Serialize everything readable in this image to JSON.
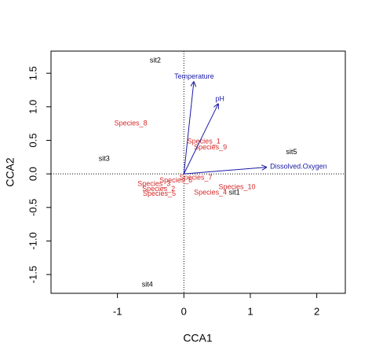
{
  "chart_data": {
    "type": "biplot",
    "x_label": "CCA1",
    "y_label": "CCA2",
    "xlim": [
      -2.0,
      2.43
    ],
    "ylim": [
      -1.78,
      1.83
    ],
    "xticks": [
      -1,
      0,
      1,
      2
    ],
    "yticks": [
      -1.5,
      {
        "value": -1.0,
        "label": "-1.0"
      },
      -0.5,
      {
        "value": 0.0,
        "label": "0.0"
      },
      0.5,
      {
        "value": 1.0,
        "label": "1.0"
      },
      1.5
    ],
    "sites": {
      "color": "#000000",
      "labels": [
        "sit1",
        "sit2",
        "sit3",
        "sit4",
        "sit5"
      ],
      "x": [
        0.76,
        -0.43,
        -1.2,
        -0.55,
        1.62
      ],
      "y": [
        -0.28,
        1.69,
        0.22,
        -1.65,
        0.32
      ]
    },
    "species": {
      "color": "#d42a2a",
      "labels": [
        "Species_1",
        "Species_2",
        "Species_3",
        "Species_4",
        "Species_5",
        "Species_6",
        "Species_7",
        "Species_8",
        "Species_9",
        "Species_10"
      ],
      "x": [
        0.3,
        -0.38,
        -0.45,
        0.4,
        -0.37,
        -0.12,
        0.18,
        -0.8,
        0.4,
        0.8
      ],
      "y": [
        0.48,
        -0.23,
        -0.15,
        -0.28,
        -0.3,
        -0.1,
        -0.06,
        0.75,
        0.39,
        -0.2
      ]
    },
    "vectors": {
      "color": "#1a1aa6",
      "labels": [
        "Temperature",
        "pH",
        "Dissolved.Oxygen"
      ],
      "x": [
        0.15,
        0.52,
        1.25
      ],
      "y": [
        1.38,
        1.05,
        0.1
      ]
    }
  }
}
